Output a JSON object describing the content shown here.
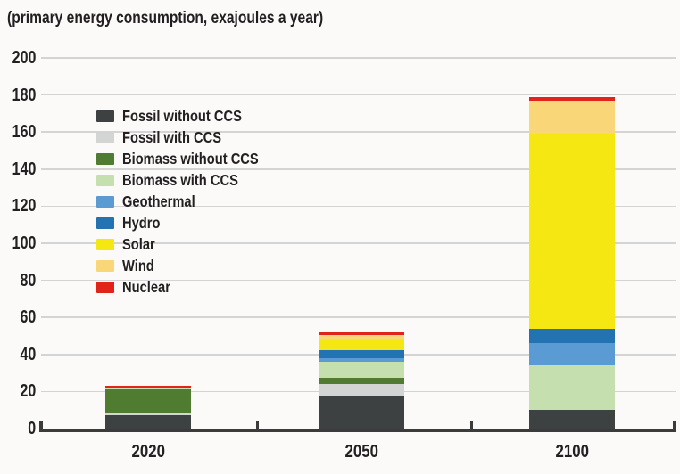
{
  "title": "(primary energy consumption, exajoules a year)",
  "chart_data": {
    "type": "bar",
    "stacked": true,
    "title": "(primary energy consumption, exajoules a year)",
    "categories": [
      "2020",
      "2050",
      "2100"
    ],
    "series": [
      {
        "name": "Fossil without CCS",
        "color": "#3d4142",
        "values": [
          7,
          18,
          10
        ]
      },
      {
        "name": "Fossil with CCS",
        "color": "#d3d5d5",
        "values": [
          1,
          6,
          0
        ]
      },
      {
        "name": "Biomass without CCS",
        "color": "#507c32",
        "values": [
          13,
          3.5,
          0
        ]
      },
      {
        "name": "Biomass with CCS",
        "color": "#c5dfae",
        "values": [
          0.5,
          8.5,
          24
        ]
      },
      {
        "name": "Geothermal",
        "color": "#5b9bd3",
        "values": [
          0,
          2,
          12
        ]
      },
      {
        "name": "Hydro",
        "color": "#2372b2",
        "values": [
          0,
          4.5,
          8
        ]
      },
      {
        "name": "Solar",
        "color": "#f5e711",
        "values": [
          0,
          6,
          105
        ]
      },
      {
        "name": "Wind",
        "color": "#f9d778",
        "values": [
          0,
          2,
          18
        ]
      },
      {
        "name": "Nuclear",
        "color": "#e02419",
        "values": [
          1.5,
          1.5,
          2
        ]
      }
    ],
    "ylim": [
      0,
      200
    ],
    "ytick_step": 20,
    "ytick_labels": [
      "0",
      "20",
      "40",
      "60",
      "80",
      "100",
      "120",
      "140",
      "160",
      "180",
      "200"
    ],
    "grid": true,
    "legend_position": "inside-upper-left",
    "colors": {
      "grid": "#d4d4d4",
      "axis": "#3b3b3b",
      "text": "#242021",
      "background": "#fbfaf9"
    }
  }
}
